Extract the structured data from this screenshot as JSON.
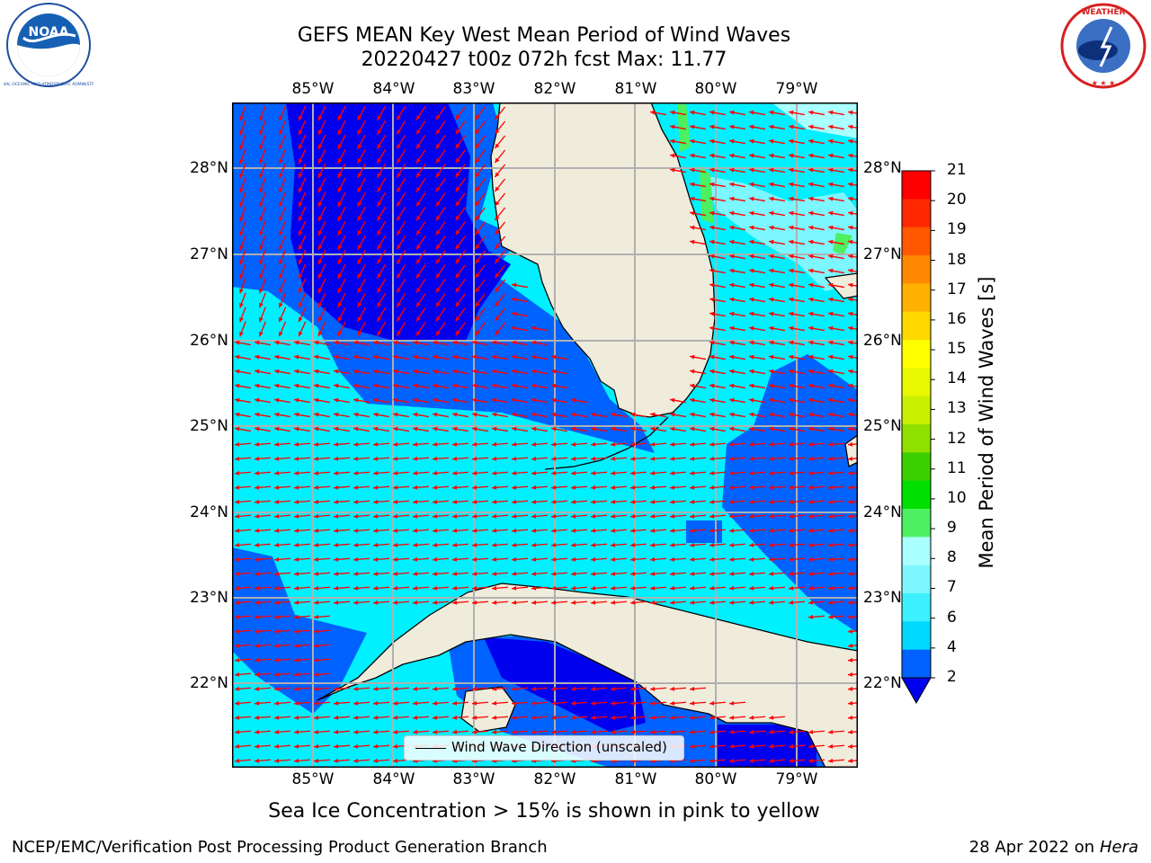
{
  "header": {
    "title_line1": "GEFS MEAN Key West Mean Period of Wind Waves",
    "title_line2": "20220427 t00z 072h fcst   Max: 11.77"
  },
  "logos": {
    "left": {
      "name": "NOAA",
      "icon": "noaa-logo",
      "text": "NOAA",
      "ring_text": "NATIONAL OCEANIC AND ATMOSPHERIC ADMINISTRATION · U.S. DEPARTMENT OF COMMERCE"
    },
    "right": {
      "name": "National Weather Service",
      "icon": "nws-logo",
      "ring_text": "NATIONAL WEATHER SERVICE"
    }
  },
  "map": {
    "lon_labels": [
      "85°W",
      "84°W",
      "83°W",
      "82°W",
      "81°W",
      "80°W",
      "79°W"
    ],
    "lat_labels": [
      "28°N",
      "27°N",
      "26°N",
      "25°N",
      "24°N",
      "23°N",
      "22°N"
    ],
    "legend": {
      "label": "Wind Wave Direction (unscaled)",
      "line_color": "#000000"
    },
    "arrow_color": "#ff0000",
    "land_color": "#efecdc",
    "grid_color": "#b0b0b0"
  },
  "colorbar": {
    "title": "Mean Period of Wind Waves [s]",
    "ticks": [
      "2",
      "4",
      "6",
      "7",
      "8",
      "9",
      "10",
      "11",
      "12",
      "13",
      "14",
      "15",
      "16",
      "17",
      "18",
      "19",
      "20",
      "21"
    ],
    "colors": [
      "#0062ff",
      "#00d8ff",
      "#3cf0ff",
      "#7cf7ff",
      "#aaffff",
      "#4cf060",
      "#00e000",
      "#3cd000",
      "#90e000",
      "#c8f000",
      "#e8f800",
      "#ffff00",
      "#ffd800",
      "#ffb000",
      "#ff8800",
      "#ff5800",
      "#ff2800",
      "#ff0000"
    ],
    "under_color": "#0000ee"
  },
  "subtitle": "Sea Ice Concentration > 15% is shown in pink to yellow",
  "footer": {
    "left": "NCEP/EMC/Verification Post Processing Product Generation Branch",
    "right_prefix": "28 Apr 2022 on",
    "right_host": "Hera"
  }
}
